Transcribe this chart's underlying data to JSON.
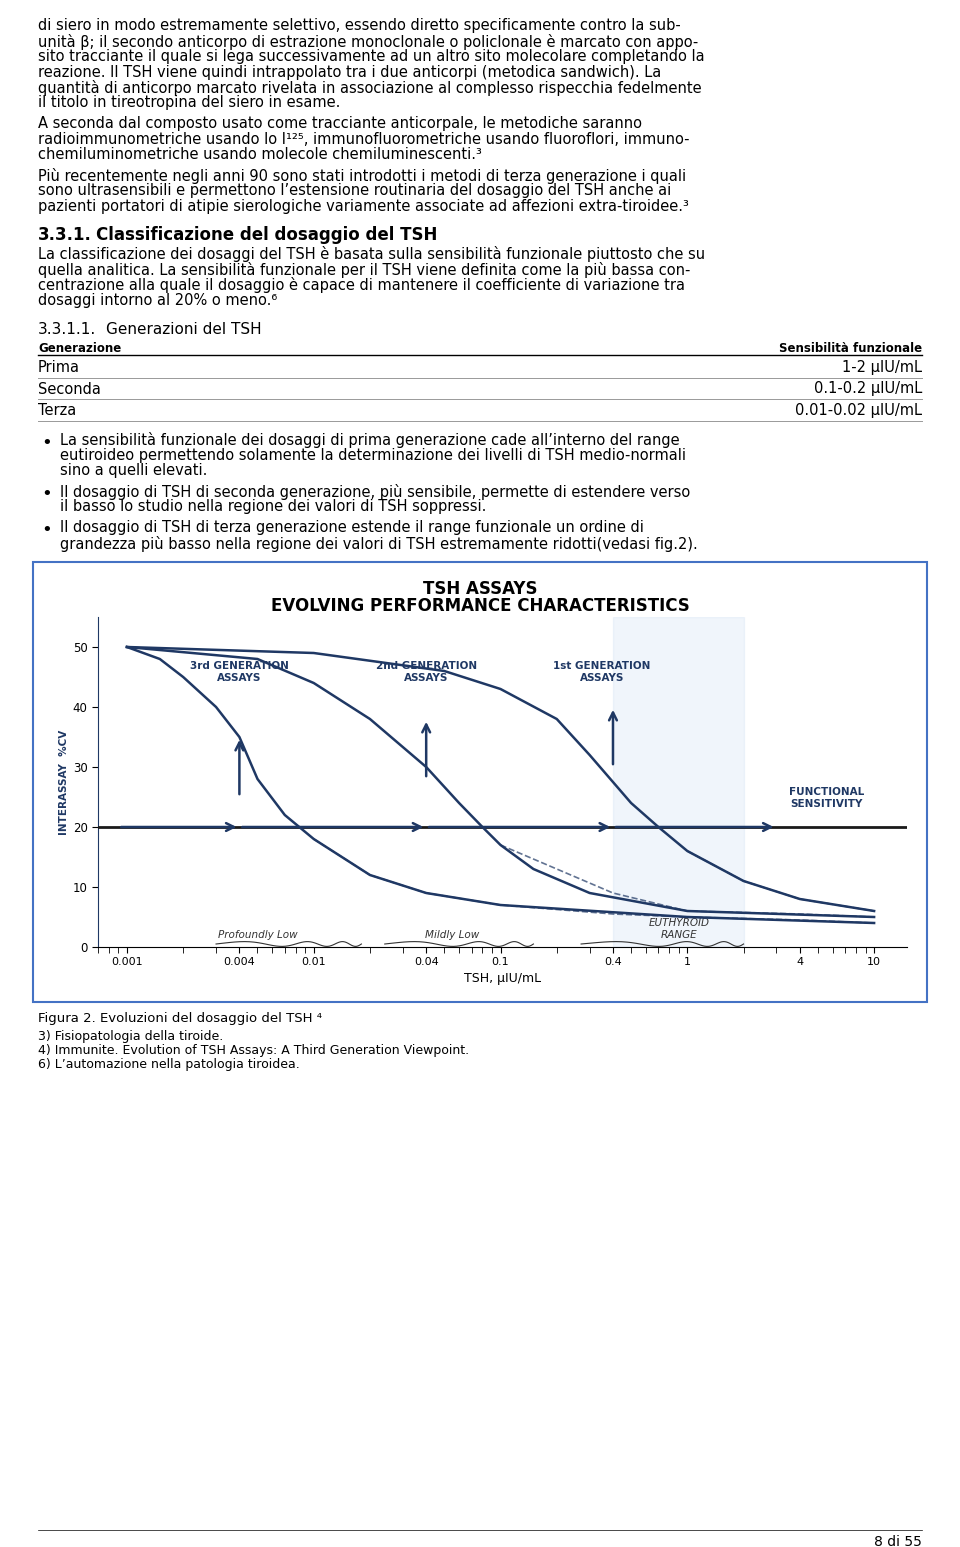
{
  "page_number": "8 di 55",
  "background_color": "#ffffff",
  "para1_lines": [
    "di siero in modo estremamente selettivo, essendo diretto specificamente contro la sub-",
    "unità β; il secondo anticorpo di estrazione monoclonale o policlonale è marcato con appo-",
    "sito tracciante il quale si lega successivamente ad un altro sito molecolare completando la",
    "reazione. Il TSH viene quindi intrappolato tra i due anticorpi (metodica sandwich). La",
    "quantità di anticorpo marcato rivelata in associazione al complesso rispecchia fedelmente",
    "il titolo in tireotropina del siero in esame."
  ],
  "para2_lines": [
    "A seconda dal composto usato come tracciante anticorpale, le metodiche saranno",
    "radioimmunometriche usando lo I¹²⁵, immunofluorometriche usando fluoroflori, immuno-",
    "chemiluminometriche usando molecole chemiluminescenti.³"
  ],
  "para3_lines": [
    "Più recentemente negli anni 90 sono stati introdotti i metodi di terza generazione i quali",
    "sono ultrasensibili e permettono l’estensione routinaria del dosaggio del TSH anche ai",
    "pazienti portatori di atipie sierologiche variamente associate ad affezioni extra-tiroidee.³"
  ],
  "section_331_num": "3.3.1.",
  "section_331_title": "Classificazione del dosaggio del TSH",
  "para4_lines": [
    "La classificazione dei dosaggi del TSH è basata sulla sensibilità funzionale piuttosto che su",
    "quella analitica. La sensibilità funzionale per il TSH viene definita come la più bassa con-",
    "centrazione alla quale il dosaggio è capace di mantenere il coefficiente di variazione tra",
    "dosaggi intorno al 20% o meno.⁶"
  ],
  "section_3311_num": "3.3.1.1.",
  "section_3311_title": "Generazioni del TSH",
  "table_header": [
    "Generazione",
    "Sensibilità funzionale"
  ],
  "table_rows": [
    [
      "Prima",
      "1-2 μIU/mL"
    ],
    [
      "Seconda",
      "0.1-0.2 μIU/mL"
    ],
    [
      "Terza",
      "0.01-0.02 μIU/mL"
    ]
  ],
  "bullet_lines": [
    [
      "La sensibilità funzionale dei dosaggi di prima generazione cade all’interno del range",
      "eutiroideo permettendo solamente la determinazione dei livelli di TSH medio-normali",
      "sino a quelli elevati."
    ],
    [
      "Il dosaggio di TSH di seconda generazione, più sensibile, permette di estendere verso",
      "il basso lo studio nella regione dei valori di TSH soppressi."
    ],
    [
      "Il dosaggio di TSH di terza generazione estende il range funzionale un ordine di",
      "grandezza più basso nella regione dei valori di TSH estremamente ridotti(vedasi fig.2)."
    ]
  ],
  "chart_title1": "TSH ASSAYS",
  "chart_title2": "EVOLVING PERFORMANCE CHARACTERISTICS",
  "chart_border_color": "#4472c4",
  "curve_color": "#1f3864",
  "highlight_color": "#c5d9f1",
  "gen_labels": [
    "3rd GENERATION\nASSAYS",
    "2nd GENERATION\nASSAYS",
    "1st GENERATION\nASSAYS"
  ],
  "functional_label": "FUNCTIONAL\nSENSITIVITY",
  "region_labels": [
    "Profoundly Low",
    "Mildly Low",
    "EUTHYROID\nRANGE"
  ],
  "ylabel_chart": "INTERASSAY  %CV",
  "xlabel_chart": "TSH, μIU/mL",
  "yticks": [
    0,
    10,
    20,
    30,
    40,
    50
  ],
  "xtick_vals": [
    0.001,
    0.004,
    0.01,
    0.04,
    0.1,
    0.4,
    1,
    4,
    10
  ],
  "xtick_labels": [
    "0.001",
    "0.004",
    "0.01",
    "0.04",
    "0.1",
    "0.4",
    "1",
    "4",
    "10"
  ],
  "figure_caption": "Figura 2. Evoluzioni del dosaggio del TSH ⁴",
  "footnotes": [
    "3) Fisiopatologia della tiroide.",
    "4) Immunite. Evolution of TSH Assays: A Third Generation Viewpoint.",
    "6) L’automazione nella patologia tiroidea."
  ]
}
